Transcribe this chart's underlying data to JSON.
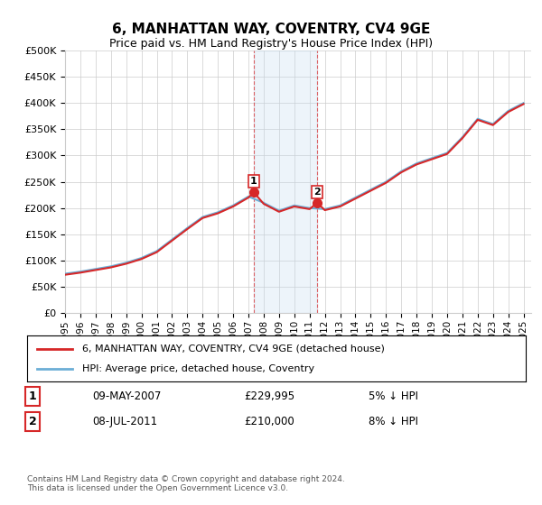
{
  "title": "6, MANHATTAN WAY, COVENTRY, CV4 9GE",
  "subtitle": "Price paid vs. HM Land Registry's House Price Index (HPI)",
  "ylabel_ticks": [
    "£0",
    "£50K",
    "£100K",
    "£150K",
    "£200K",
    "£250K",
    "£300K",
    "£350K",
    "£400K",
    "£450K",
    "£500K"
  ],
  "ylim": [
    0,
    500000
  ],
  "xlim_start": 1995.0,
  "xlim_end": 2025.5,
  "sale1_date": 2007.35,
  "sale1_price": 229995,
  "sale2_date": 2011.5,
  "sale2_price": 210000,
  "legend_line1": "6, MANHATTAN WAY, COVENTRY, CV4 9GE (detached house)",
  "legend_line2": "HPI: Average price, detached house, Coventry",
  "table_row1_label": "1",
  "table_row1_date": "09-MAY-2007",
  "table_row1_price": "£229,995",
  "table_row1_hpi": "5% ↓ HPI",
  "table_row2_label": "2",
  "table_row2_date": "08-JUL-2011",
  "table_row2_price": "£210,000",
  "table_row2_hpi": "8% ↓ HPI",
  "footer": "Contains HM Land Registry data © Crown copyright and database right 2024.\nThis data is licensed under the Open Government Licence v3.0.",
  "hpi_color": "#6baed6",
  "price_color": "#d62728",
  "shade_color": "#c6dbef",
  "marker_color": "#d62728",
  "grid_color": "#cccccc",
  "bg_color": "#ffffff"
}
